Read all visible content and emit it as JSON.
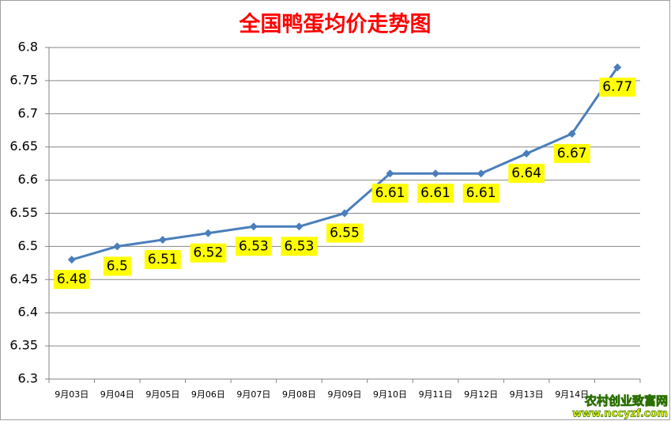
{
  "chart_data": {
    "type": "line",
    "title": "全国鸭蛋均价走势图",
    "categories": [
      "9月03日",
      "9月04日",
      "9月05日",
      "9月06日",
      "9月07日",
      "9月08日",
      "9月09日",
      "9月10日",
      "9月11日",
      "9月12日",
      "9月13日",
      "9月14日",
      null
    ],
    "series": [
      {
        "color": "#4a7ebb",
        "values": [
          6.48,
          6.5,
          6.51,
          6.52,
          6.53,
          6.53,
          6.55,
          6.61,
          6.61,
          6.61,
          6.64,
          6.67,
          6.77
        ]
      }
    ],
    "ylim": [
      6.3,
      6.8
    ],
    "yticks": [
      6.3,
      6.35,
      6.4,
      6.45,
      6.5,
      6.55,
      6.6,
      6.65,
      6.7,
      6.75,
      6.8
    ],
    "grid": true,
    "label_color": "#ffff00"
  },
  "watermark": {
    "name": "农村创业致富网",
    "url": "www.nccyzf.com"
  }
}
